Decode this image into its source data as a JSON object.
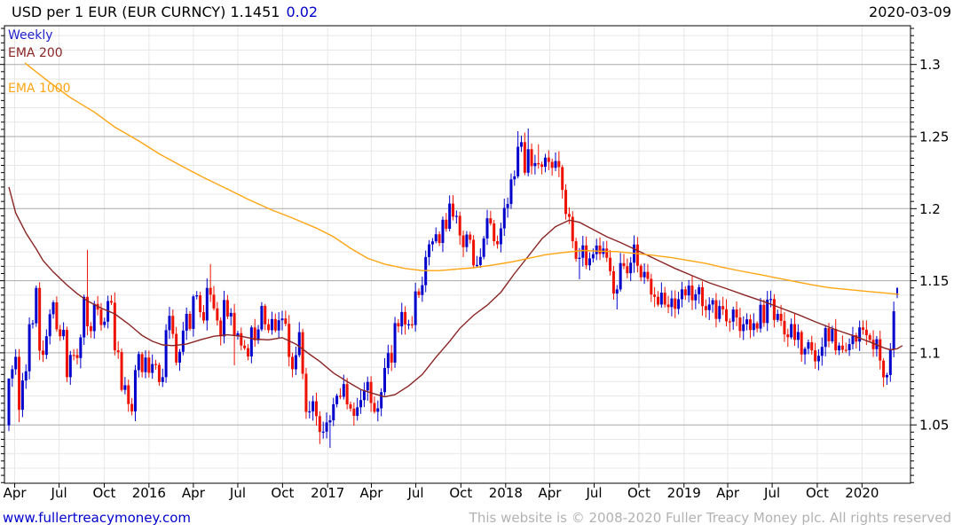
{
  "header": {
    "title": "USD per 1 EUR (EUR CURNCY) 1.1451",
    "change": "0.02",
    "date": "2020-03-09"
  },
  "legend": {
    "frequency": "Weekly",
    "ema200": "EMA 200",
    "ema1000": "EMA 1000"
  },
  "footer": {
    "site": "www.fullertreacymoney.com",
    "copyright": "This website is © 2008-2020 Fuller Treacy Money plc. All rights reserved"
  },
  "colors": {
    "candle_up": "#0000cc",
    "candle_down": "#ee1100",
    "ema200": "#8b2424",
    "ema1000": "#ffa513",
    "grid_major": "#aaaaaa",
    "grid_minor": "#e7e7e7",
    "axis": "#000000",
    "label_blue": "#2222cc"
  },
  "chart_data": {
    "type": "candlestick",
    "title": "USD per 1 EUR (EUR CURNCY)",
    "frequency": "weekly",
    "last_price": 1.1451,
    "change": 0.02,
    "as_of_date": "2020-03-09",
    "legend_position": "top-left",
    "grid": true,
    "y_axis": {
      "range": [
        1.0095,
        1.3269
      ],
      "minor_step": 0.01,
      "ticks": [
        {
          "v": 1.3,
          "label": "1.3"
        },
        {
          "v": 1.25,
          "label": "1.25"
        },
        {
          "v": 1.2,
          "label": "1.2"
        },
        {
          "v": 1.15,
          "label": "1.15"
        },
        {
          "v": 1.1,
          "label": "1.1"
        },
        {
          "v": 1.05,
          "label": "1.05"
        }
      ]
    },
    "x_axis": {
      "start_week": "2015-03-20",
      "ticks": [
        {
          "i": 1.7,
          "label": "Apr"
        },
        {
          "i": 14.7,
          "label": "Jul"
        },
        {
          "i": 27.9,
          "label": "Oct"
        },
        {
          "i": 41.0,
          "label": "2016"
        },
        {
          "i": 54.0,
          "label": "Apr"
        },
        {
          "i": 67.0,
          "label": "Jul"
        },
        {
          "i": 80.1,
          "label": "Oct"
        },
        {
          "i": 93.3,
          "label": "2017"
        },
        {
          "i": 106.1,
          "label": "Apr"
        },
        {
          "i": 119.1,
          "label": "Jul"
        },
        {
          "i": 132.3,
          "label": "Oct"
        },
        {
          "i": 145.4,
          "label": "2018"
        },
        {
          "i": 158.3,
          "label": "Apr"
        },
        {
          "i": 171.3,
          "label": "Jul"
        },
        {
          "i": 184.4,
          "label": "Oct"
        },
        {
          "i": 197.6,
          "label": "2019"
        },
        {
          "i": 210.4,
          "label": "Apr"
        },
        {
          "i": 223.4,
          "label": "Jul"
        },
        {
          "i": 236.6,
          "label": "Oct"
        },
        {
          "i": 249.7,
          "label": "2020"
        }
      ]
    },
    "series": {
      "first_open": 1.0497,
      "current_index": 260,
      "current_open": 1.14,
      "weekly_closes": [
        1.0822,
        1.0886,
        1.0972,
        1.0605,
        1.0808,
        1.0872,
        1.1198,
        1.1205,
        1.145,
        1.1015,
        1.0986,
        1.1115,
        1.1268,
        1.135,
        1.1163,
        1.1115,
        1.1159,
        1.0831,
        1.0985,
        1.0984,
        1.0964,
        1.1107,
        1.1388,
        1.1184,
        1.115,
        1.1339,
        1.13,
        1.1193,
        1.1216,
        1.1359,
        1.1348,
        1.1017,
        1.1005,
        1.0743,
        1.0775,
        1.0645,
        1.0593,
        1.088,
        1.0991,
        1.0866,
        1.0967,
        1.0861,
        1.0922,
        1.0916,
        1.0797,
        1.0831,
        1.1157,
        1.1256,
        1.1131,
        1.0932,
        1.1007,
        1.1154,
        1.127,
        1.1166,
        1.1391,
        1.1399,
        1.1282,
        1.1224,
        1.145,
        1.1403,
        1.1308,
        1.1224,
        1.1114,
        1.1366,
        1.1252,
        1.1277,
        1.1117,
        1.1136,
        1.105,
        1.1032,
        1.0975,
        1.1176,
        1.1087,
        1.1162,
        1.1325,
        1.1198,
        1.1157,
        1.1234,
        1.1155,
        1.1226,
        1.1238,
        1.1201,
        1.0972,
        1.0886,
        1.0984,
        1.1143,
        1.0855,
        1.059,
        1.0594,
        1.0664,
        1.0561,
        1.0452,
        1.0453,
        1.0517,
        1.0532,
        1.0643,
        1.0702,
        1.0695,
        1.0783,
        1.0642,
        1.0613,
        1.0563,
        1.0622,
        1.0672,
        1.0739,
        1.0798,
        1.0652,
        1.0591,
        1.0615,
        1.0727,
        1.0895,
        1.0998,
        1.0932,
        1.1206,
        1.1183,
        1.1283,
        1.1196,
        1.1198,
        1.1193,
        1.1426,
        1.1401,
        1.1469,
        1.1664,
        1.1752,
        1.1773,
        1.1822,
        1.1762,
        1.1923,
        1.186,
        1.2035,
        1.1944,
        1.195,
        1.1814,
        1.1733,
        1.182,
        1.1784,
        1.1607,
        1.1609,
        1.1665,
        1.1793,
        1.1933,
        1.1897,
        1.1774,
        1.1753,
        1.1863,
        1.2005,
        1.2032,
        1.2203,
        1.2224,
        1.2429,
        1.2461,
        1.2249,
        1.2412,
        1.2295,
        1.2316,
        1.2307,
        1.229,
        1.2354,
        1.2324,
        1.2283,
        1.233,
        1.2288,
        1.213,
        1.1963,
        1.1943,
        1.1774,
        1.1652,
        1.1659,
        1.1745,
        1.1607,
        1.1655,
        1.1684,
        1.1744,
        1.1686,
        1.1723,
        1.1659,
        1.1566,
        1.1411,
        1.144,
        1.1622,
        1.1601,
        1.1552,
        1.1625,
        1.1751,
        1.1604,
        1.1524,
        1.1561,
        1.1513,
        1.1404,
        1.1388,
        1.1335,
        1.1417,
        1.1335,
        1.1317,
        1.1377,
        1.1305,
        1.1372,
        1.144,
        1.1398,
        1.1466,
        1.1364,
        1.1406,
        1.1455,
        1.1324,
        1.1296,
        1.1335,
        1.1365,
        1.1235,
        1.1324,
        1.1302,
        1.1218,
        1.1216,
        1.13,
        1.1245,
        1.1151,
        1.1198,
        1.1232,
        1.1158,
        1.1205,
        1.1168,
        1.1333,
        1.1207,
        1.1369,
        1.1373,
        1.1228,
        1.127,
        1.1221,
        1.1128,
        1.1108,
        1.1199,
        1.109,
        1.1144,
        1.0989,
        1.1028,
        1.1073,
        1.1017,
        1.0941,
        1.0979,
        1.1041,
        1.1171,
        1.108,
        1.1166,
        1.1017,
        1.105,
        1.1021,
        1.1018,
        1.106,
        1.1122,
        1.1078,
        1.1176,
        1.116,
        1.1122,
        1.109,
        1.1025,
        1.1094,
        1.0946,
        1.083,
        1.0846,
        1.1027,
        1.1288,
        1.1451
      ],
      "wick_overrides": [
        [
          0,
          1.053,
          1.0457
        ],
        [
          3,
          null,
          1.052
        ],
        [
          8,
          1.1467,
          null
        ],
        [
          23,
          1.1714,
          null
        ],
        [
          36,
          null,
          1.0566
        ],
        [
          59,
          1.1616,
          null
        ],
        [
          66,
          null,
          1.0913
        ],
        [
          91,
          null,
          1.0367
        ],
        [
          94,
          null,
          1.0341
        ],
        [
          101,
          null,
          1.0494
        ],
        [
          129,
          1.2092,
          null
        ],
        [
          149,
          1.2537,
          null
        ],
        [
          152,
          1.2556,
          null
        ],
        [
          155,
          1.2446,
          null
        ],
        [
          167,
          null,
          1.151
        ],
        [
          178,
          null,
          1.1301
        ],
        [
          207,
          null,
          1.1177
        ],
        [
          237,
          null,
          1.0879
        ],
        [
          257,
          null,
          1.0778
        ],
        [
          259,
          1.1355,
          null
        ],
        [
          260,
          1.1451,
          1.1378
        ]
      ],
      "ema200": [
        [
          0,
          1.215
        ],
        [
          2,
          1.197
        ],
        [
          5,
          1.183
        ],
        [
          8,
          1.172
        ],
        [
          10,
          1.164
        ],
        [
          13,
          1.156
        ],
        [
          17,
          1.147
        ],
        [
          20,
          1.141
        ],
        [
          23,
          1.136
        ],
        [
          27,
          1.131
        ],
        [
          31,
          1.127
        ],
        [
          35,
          1.12
        ],
        [
          39,
          1.112
        ],
        [
          42,
          1.108
        ],
        [
          45,
          1.1055
        ],
        [
          48,
          1.105
        ],
        [
          52,
          1.106
        ],
        [
          56,
          1.109
        ],
        [
          60,
          1.1115
        ],
        [
          64,
          1.1125
        ],
        [
          68,
          1.1115
        ],
        [
          72,
          1.1095
        ],
        [
          76,
          1.109
        ],
        [
          80,
          1.1105
        ],
        [
          84,
          1.106
        ],
        [
          88,
          1.099
        ],
        [
          91,
          1.094
        ],
        [
          95,
          1.086
        ],
        [
          99,
          1.08
        ],
        [
          103,
          1.0745
        ],
        [
          107,
          1.0715
        ],
        [
          110,
          1.0695
        ],
        [
          113,
          1.071
        ],
        [
          117,
          1.077
        ],
        [
          121,
          1.085
        ],
        [
          125,
          1.097
        ],
        [
          129,
          1.108
        ],
        [
          132,
          1.117
        ],
        [
          136,
          1.126
        ],
        [
          140,
          1.133
        ],
        [
          144,
          1.142
        ],
        [
          148,
          1.155
        ],
        [
          152,
          1.167
        ],
        [
          156,
          1.179
        ],
        [
          160,
          1.1875
        ],
        [
          164,
          1.192
        ],
        [
          167,
          1.1905
        ],
        [
          171,
          1.1855
        ],
        [
          175,
          1.1805
        ],
        [
          179,
          1.1765
        ],
        [
          183,
          1.172
        ],
        [
          187,
          1.1675
        ],
        [
          191,
          1.163
        ],
        [
          195,
          1.1585
        ],
        [
          200,
          1.1535
        ],
        [
          205,
          1.1485
        ],
        [
          210,
          1.1445
        ],
        [
          216,
          1.1395
        ],
        [
          221,
          1.1355
        ],
        [
          226,
          1.131
        ],
        [
          231,
          1.1265
        ],
        [
          236,
          1.1215
        ],
        [
          242,
          1.116
        ],
        [
          247,
          1.112
        ],
        [
          252,
          1.1075
        ],
        [
          256,
          1.1035
        ],
        [
          258,
          1.102
        ],
        [
          260,
          1.1028
        ],
        [
          261.5,
          1.105
        ]
      ],
      "ema1000": [
        [
          4.7,
          1.301
        ],
        [
          11.7,
          1.288
        ],
        [
          18,
          1.277
        ],
        [
          25,
          1.267
        ],
        [
          31,
          1.2565
        ],
        [
          38,
          1.247
        ],
        [
          44,
          1.238
        ],
        [
          51,
          1.229
        ],
        [
          57,
          1.2215
        ],
        [
          64,
          1.2135
        ],
        [
          70,
          1.2065
        ],
        [
          77,
          1.199
        ],
        [
          83,
          1.1935
        ],
        [
          90,
          1.1865
        ],
        [
          95,
          1.1805
        ],
        [
          100,
          1.1725
        ],
        [
          105,
          1.1655
        ],
        [
          110,
          1.1615
        ],
        [
          116,
          1.1585
        ],
        [
          121,
          1.157
        ],
        [
          126,
          1.157
        ],
        [
          131,
          1.158
        ],
        [
          136,
          1.159
        ],
        [
          142,
          1.161
        ],
        [
          147,
          1.163
        ],
        [
          152,
          1.1655
        ],
        [
          157,
          1.168
        ],
        [
          162,
          1.1695
        ],
        [
          168,
          1.171
        ],
        [
          173,
          1.1705
        ],
        [
          178,
          1.1702
        ],
        [
          183,
          1.169
        ],
        [
          188,
          1.1678
        ],
        [
          194,
          1.166
        ],
        [
          199,
          1.164
        ],
        [
          204,
          1.162
        ],
        [
          209,
          1.1592
        ],
        [
          214,
          1.1568
        ],
        [
          220,
          1.1542
        ],
        [
          225,
          1.1518
        ],
        [
          230,
          1.1495
        ],
        [
          235,
          1.1472
        ],
        [
          240,
          1.1452
        ],
        [
          246,
          1.1438
        ],
        [
          251,
          1.1426
        ],
        [
          256,
          1.1416
        ],
        [
          260.5,
          1.1406
        ]
      ]
    }
  }
}
